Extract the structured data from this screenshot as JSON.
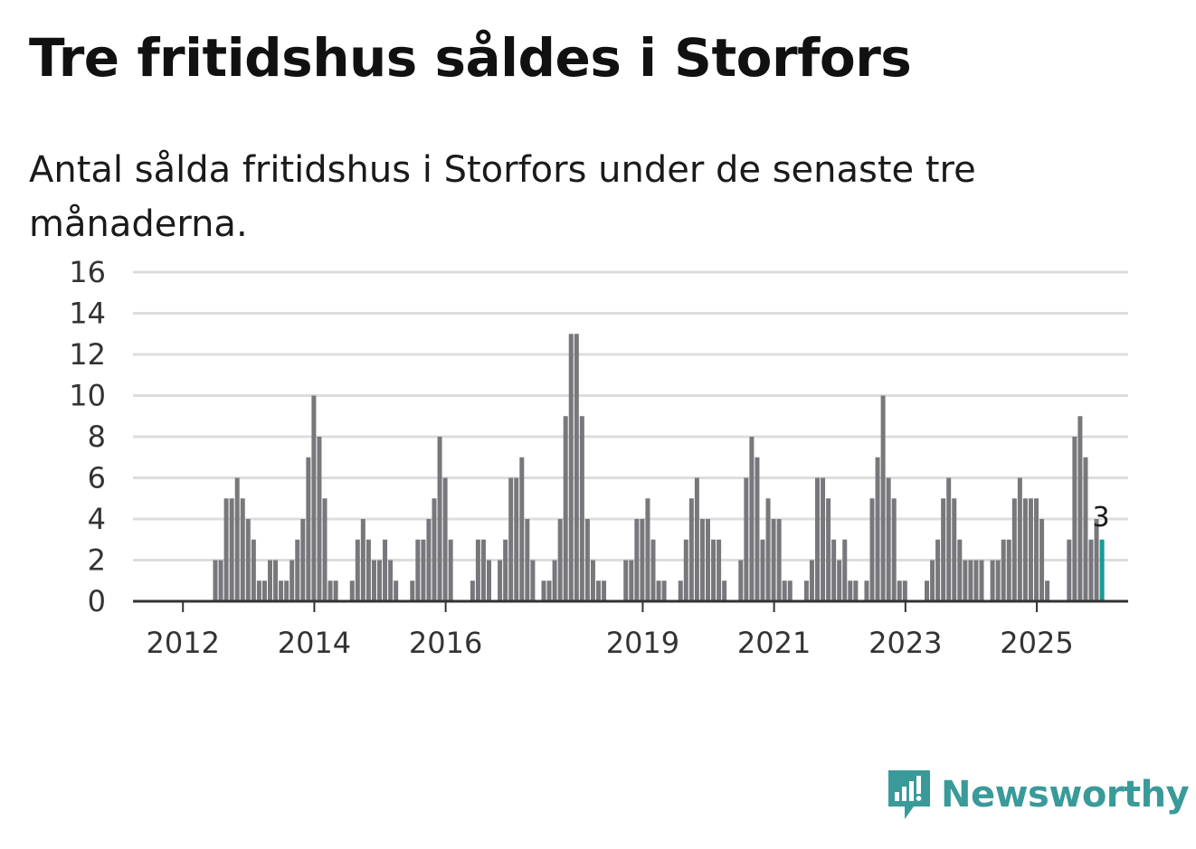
{
  "title": "Tre fritidshus såldes i Storfors",
  "subtitle": "Antal sålda fritidshus i Storfors under de senaste tre månaderna.",
  "brand": {
    "name": "Newsworthy",
    "color": "#3a9a9a",
    "icon": "newsworthy-logo-icon"
  },
  "colors": {
    "bar": "#78777c",
    "highlight": "#1a9a94",
    "grid": "#dddddd",
    "baseline": "#333333"
  },
  "chart_data": {
    "type": "bar",
    "x_start": "2012-01",
    "x_unit": "month",
    "x_tick_labels": [
      "2012",
      "2014",
      "2016",
      "2019",
      "2021",
      "2023",
      "2025"
    ],
    "x_tick_months": [
      0,
      24,
      48,
      84,
      108,
      132,
      156
    ],
    "y_ticks": [
      0,
      2,
      4,
      6,
      8,
      10,
      12,
      14,
      16
    ],
    "ylim": [
      0,
      16
    ],
    "grid": true,
    "values": [
      0,
      0,
      0,
      0,
      0,
      0,
      0,
      0,
      0,
      0,
      2,
      2,
      5,
      5,
      6,
      5,
      4,
      3,
      1,
      1,
      2,
      2,
      1,
      1,
      2,
      3,
      4,
      7,
      10,
      8,
      5,
      1,
      1,
      0,
      0,
      1,
      3,
      4,
      3,
      2,
      2,
      3,
      2,
      1,
      0,
      0,
      1,
      3,
      3,
      4,
      5,
      8,
      6,
      3,
      0,
      0,
      0,
      1,
      3,
      3,
      2,
      0,
      2,
      3,
      6,
      6,
      7,
      4,
      2,
      0,
      1,
      1,
      2,
      4,
      9,
      13,
      13,
      9,
      4,
      2,
      1,
      1,
      0,
      0,
      0,
      2,
      2,
      4,
      4,
      5,
      3,
      1,
      1,
      0,
      0,
      1,
      3,
      5,
      6,
      4,
      4,
      3,
      3,
      1,
      0,
      0,
      2,
      6,
      8,
      7,
      3,
      5,
      4,
      4,
      1,
      1,
      0,
      0,
      1,
      2,
      6,
      6,
      5,
      3,
      2,
      3,
      1,
      1,
      0,
      1,
      5,
      7,
      10,
      6,
      5,
      1,
      1,
      0,
      0,
      0,
      1,
      2,
      3,
      5,
      6,
      5,
      3,
      2,
      2,
      2,
      2,
      0,
      2,
      2,
      3,
      3,
      5,
      6,
      5,
      5,
      5,
      4,
      1,
      0,
      0,
      0,
      3,
      8,
      9,
      7,
      3,
      4,
      3
    ],
    "highlight_last": true,
    "data_labels": [
      {
        "text": "3"
      }
    ]
  }
}
